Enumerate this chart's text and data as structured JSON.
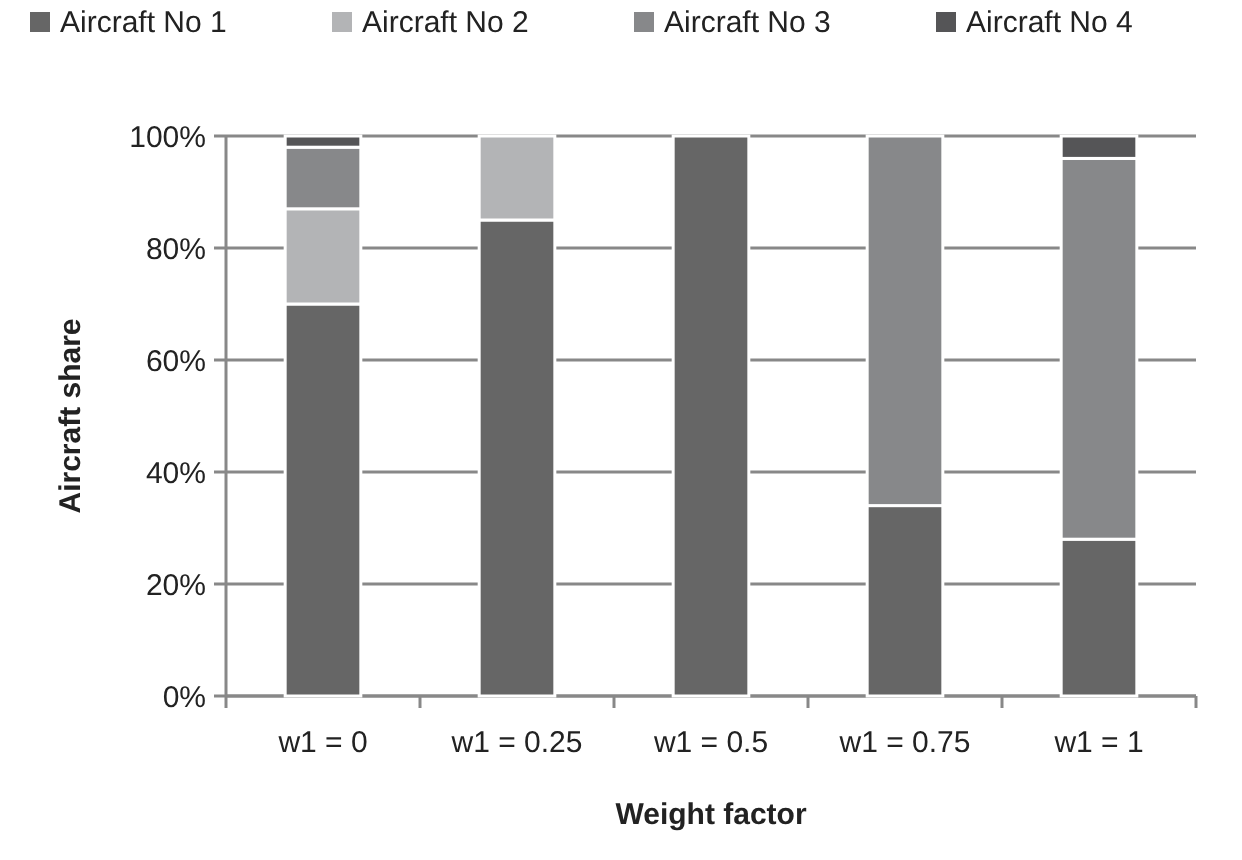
{
  "chart_data": {
    "type": "bar",
    "stacked": true,
    "xlabel": "Weight factor",
    "ylabel": "Aircraft share",
    "categories": [
      "w1 = 0",
      "w1 = 0.25",
      "w1 = 0.5",
      "w1 = 0.75",
      "w1 = 1"
    ],
    "series": [
      {
        "name": "Aircraft No 1",
        "color": "#666666",
        "values": [
          70,
          85,
          100,
          34,
          28
        ]
      },
      {
        "name": "Aircraft No 2",
        "color": "#b3b4b6",
        "values": [
          17,
          15,
          0,
          0,
          0
        ]
      },
      {
        "name": "Aircraft No 3",
        "color": "#87888a",
        "values": [
          11,
          0,
          0,
          66,
          68
        ]
      },
      {
        "name": "Aircraft No 4",
        "color": "#555557",
        "values": [
          2,
          0,
          0,
          0,
          4
        ]
      }
    ],
    "ylim": [
      0,
      100
    ],
    "yticks": [
      {
        "value": 0,
        "label": "0%"
      },
      {
        "value": 20,
        "label": "20%"
      },
      {
        "value": 40,
        "label": "40%"
      },
      {
        "value": 60,
        "label": "60%"
      },
      {
        "value": 80,
        "label": "80%"
      },
      {
        "value": 100,
        "label": "100%"
      }
    ],
    "grid": "y",
    "legend": "top"
  }
}
